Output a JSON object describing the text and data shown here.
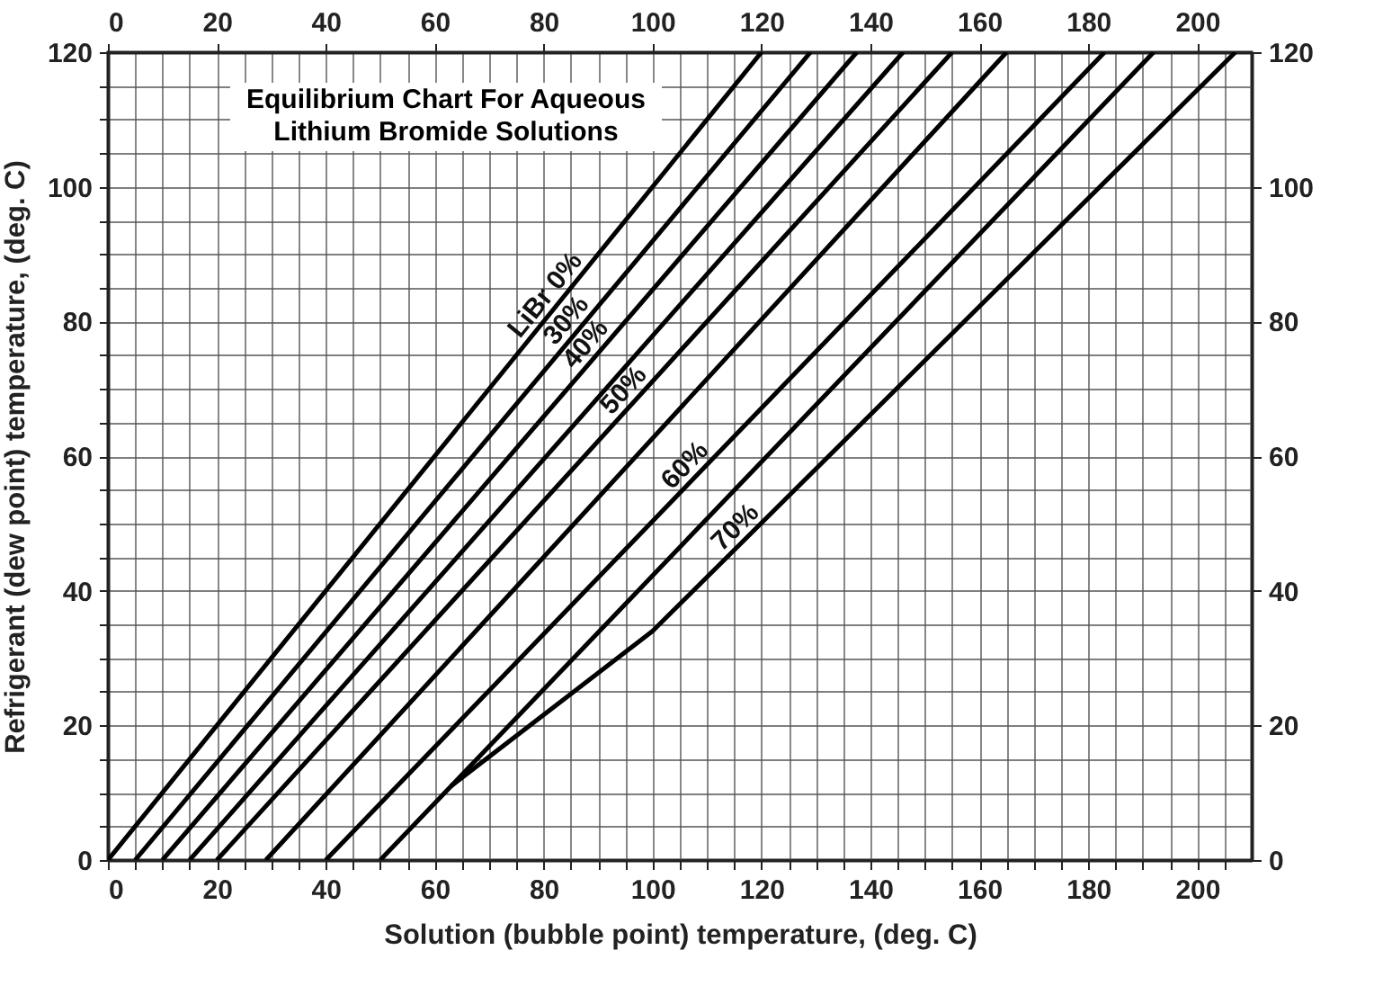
{
  "chart_data": {
    "type": "line",
    "title": "Equilibrium Chart For Aqueous Lithium Bromide Solutions",
    "xlabel": "Solution (bubble point) temperature, (deg. C)",
    "ylabel": "Refrigerant (dew point) temperature, (deg. C)",
    "xlim": [
      0,
      210
    ],
    "xticks": [
      0,
      {
        "value": 5,
        "label": null
      },
      {
        "value": 10,
        "label": null
      },
      {
        "value": 15,
        "label": null
      },
      20,
      {
        "value": 25,
        "label": null
      },
      {
        "value": 30,
        "label": null
      },
      {
        "value": 35,
        "label": null
      },
      40,
      {
        "value": 45,
        "label": null
      },
      {
        "value": 50,
        "label": null
      },
      {
        "value": 55,
        "label": null
      },
      60,
      {
        "value": 65,
        "label": null
      },
      {
        "value": 70,
        "label": null
      },
      {
        "value": 75,
        "label": null
      },
      80,
      {
        "value": 85,
        "label": null
      },
      {
        "value": 90,
        "label": null
      },
      {
        "value": 95,
        "label": null
      },
      100,
      {
        "value": 105,
        "label": null
      },
      {
        "value": 110,
        "label": null
      },
      {
        "value": 115,
        "label": null
      },
      120,
      {
        "value": 125,
        "label": null
      },
      {
        "value": 130,
        "label": null
      },
      {
        "value": 135,
        "label": null
      },
      140,
      {
        "value": 145,
        "label": null
      },
      {
        "value": 150,
        "label": null
      },
      {
        "value": 155,
        "label": null
      },
      160,
      {
        "value": 165,
        "label": null
      },
      {
        "value": 170,
        "label": null
      },
      {
        "value": 175,
        "label": null
      },
      180,
      {
        "value": 185,
        "label": null
      },
      {
        "value": 190,
        "label": null
      },
      {
        "value": 195,
        "label": null
      },
      200,
      {
        "value": 205,
        "label": null
      }
    ],
    "x2lim": [
      0,
      210
    ],
    "x2ticks": [
      0,
      20,
      40,
      60,
      80,
      100,
      120,
      140,
      160,
      180,
      200
    ],
    "ylim": [
      0,
      120
    ],
    "yticks": [
      0,
      {
        "value": 5,
        "label": null
      },
      {
        "value": 10,
        "label": null
      },
      {
        "value": 15,
        "label": null
      },
      20,
      {
        "value": 25,
        "label": null
      },
      {
        "value": 30,
        "label": null
      },
      {
        "value": 35,
        "label": null
      },
      40,
      {
        "value": 45,
        "label": null
      },
      {
        "value": 50,
        "label": null
      },
      {
        "value": 55,
        "label": null
      },
      60,
      {
        "value": 65,
        "label": null
      },
      {
        "value": 70,
        "label": null
      },
      {
        "value": 75,
        "label": null
      },
      80,
      {
        "value": 85,
        "label": null
      },
      {
        "value": 90,
        "label": null
      },
      {
        "value": 95,
        "label": null
      },
      100,
      {
        "value": 105,
        "label": null
      },
      {
        "value": 110,
        "label": null
      },
      {
        "value": 115,
        "label": null
      },
      120
    ],
    "y2lim": [
      0,
      120
    ],
    "y2ticks": [
      0,
      20,
      40,
      60,
      80,
      100,
      120
    ],
    "grid": true,
    "series": [
      {
        "name": "LiBr 0%",
        "color": "#000000",
        "x": [
          0,
          120
        ],
        "values": [
          0,
          120
        ]
      },
      {
        "name": "30%",
        "color": "#000000",
        "x": [
          5,
          129
        ],
        "values": [
          0,
          120
        ]
      },
      {
        "name": "40%",
        "color": "#000000",
        "x": [
          10,
          137.5
        ],
        "values": [
          0,
          120
        ]
      },
      {
        "color": "#000000",
        "x": [
          15,
          146
        ],
        "values": [
          0,
          120
        ]
      },
      {
        "name": "50%",
        "color": "#000000",
        "x": [
          20,
          155
        ],
        "values": [
          0,
          120
        ]
      },
      {
        "color": "#000000",
        "x": [
          29,
          165
        ],
        "values": [
          0,
          120
        ]
      },
      {
        "name": "60%",
        "color": "#000000",
        "x": [
          40,
          183
        ],
        "values": [
          0,
          120
        ]
      },
      {
        "color": "#000000",
        "x": [
          50,
          192
        ],
        "values": [
          0,
          120
        ]
      },
      {
        "name": "70%",
        "color": "#000000",
        "x": [
          63,
          100,
          207
        ],
        "values": [
          11,
          34,
          120
        ]
      }
    ]
  }
}
